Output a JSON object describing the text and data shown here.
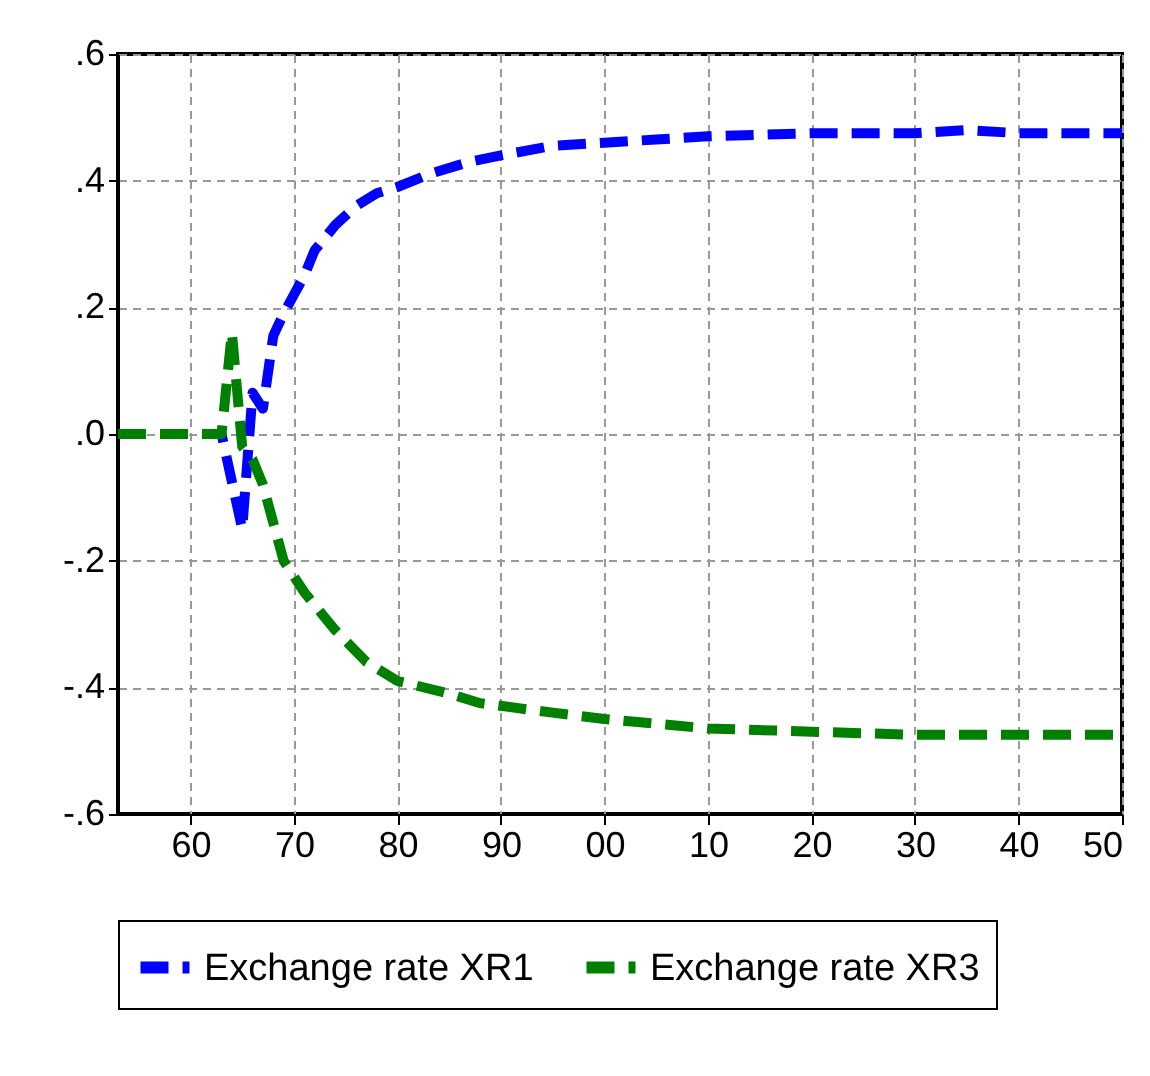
{
  "chart_data": {
    "type": "line",
    "xlim": [
      1953,
      2050
    ],
    "xticks": [
      {
        "value": 1960,
        "label": "60"
      },
      {
        "value": 1970,
        "label": "70"
      },
      {
        "value": 1980,
        "label": "80"
      },
      {
        "value": 1990,
        "label": "90"
      },
      {
        "value": 2000,
        "label": "00"
      },
      {
        "value": 2010,
        "label": "10"
      },
      {
        "value": 2020,
        "label": "20"
      },
      {
        "value": 2030,
        "label": "30"
      },
      {
        "value": 2040,
        "label": "40"
      },
      {
        "value": 2050,
        "label": "50"
      }
    ],
    "ylim": [
      -0.6,
      0.6
    ],
    "yticks": [
      {
        "value": -0.6,
        "label": "-.6"
      },
      {
        "value": -0.4,
        "label": "-.4"
      },
      {
        "value": -0.2,
        "label": "-.2"
      },
      {
        "value": 0,
        "label": ".0"
      },
      {
        "value": 0.2,
        "label": ".2"
      },
      {
        "value": 0.4,
        "label": ".4"
      },
      {
        "value": 0.6,
        "label": ".6"
      }
    ],
    "grid": true,
    "legend": "bottom",
    "line_style": "dashed",
    "marker": "none",
    "series": [
      {
        "name": "Exchange rate XR1",
        "color": "#0000ff",
        "x": [
          1953,
          1963,
          1965,
          1966,
          1967,
          1968,
          1969,
          1970,
          1971,
          1972,
          1974,
          1976,
          1978,
          1980,
          1983,
          1987,
          1990,
          1995,
          2000,
          2005,
          2010,
          2020,
          2030,
          2035,
          2040,
          2050
        ],
        "values": [
          0,
          0,
          -0.15,
          0.065,
          0.04,
          0.155,
          0.19,
          0.22,
          0.25,
          0.29,
          0.33,
          0.36,
          0.38,
          0.39,
          0.41,
          0.43,
          0.44,
          0.455,
          0.46,
          0.465,
          0.47,
          0.475,
          0.475,
          0.48,
          0.475,
          0.475
        ]
      },
      {
        "name": "Exchange rate XR3",
        "color": "#008000",
        "x": [
          1953,
          1963,
          1964,
          1965,
          1966,
          1967,
          1968,
          1969,
          1971,
          1974,
          1977,
          1980,
          1985,
          1988,
          1995,
          2000,
          2010,
          2020,
          2030,
          2040,
          2050
        ],
        "values": [
          0,
          0,
          0.16,
          -0.02,
          -0.04,
          -0.08,
          -0.14,
          -0.2,
          -0.25,
          -0.31,
          -0.36,
          -0.39,
          -0.41,
          -0.425,
          -0.44,
          -0.45,
          -0.465,
          -0.47,
          -0.475,
          -0.475,
          -0.475
        ]
      }
    ]
  }
}
